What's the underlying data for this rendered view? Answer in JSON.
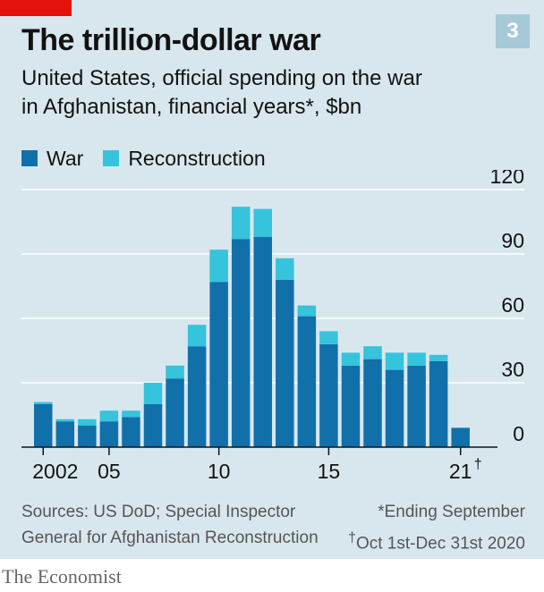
{
  "badge": "3",
  "title": "The trillion-dollar war",
  "subtitle_line1": "United States, official spending on the war",
  "subtitle_line2": "in Afghanistan, financial years*, $bn",
  "legend": {
    "war": "War",
    "reconstruction": "Reconstruction"
  },
  "colors": {
    "war": "#1170aa",
    "reconstruction": "#36c3dc",
    "background": "#d8e7ee",
    "brand_red": "#e3120b"
  },
  "chart_data": {
    "type": "bar",
    "stacked": true,
    "x": [
      2002,
      2003,
      2004,
      2005,
      2006,
      2007,
      2008,
      2009,
      2010,
      2011,
      2012,
      2013,
      2014,
      2015,
      2016,
      2017,
      2018,
      2019,
      2020,
      2021
    ],
    "x_tick_labels": [
      {
        "year": 2002,
        "label": "2002"
      },
      {
        "year": 2005,
        "label": "05"
      },
      {
        "year": 2010,
        "label": "10"
      },
      {
        "year": 2015,
        "label": "15"
      },
      {
        "year": 2021,
        "label": "21",
        "marker": "†"
      }
    ],
    "series": [
      {
        "name": "War",
        "values": [
          20,
          12,
          10,
          12,
          14,
          20,
          32,
          47,
          77,
          97,
          98,
          78,
          61,
          48,
          38,
          41,
          36,
          38,
          40,
          9
        ]
      },
      {
        "name": "Reconstruction",
        "values": [
          1,
          1,
          3,
          5,
          3,
          10,
          6,
          10,
          15,
          15,
          13,
          10,
          5,
          6,
          6,
          6,
          8,
          6,
          3,
          0
        ]
      }
    ],
    "y_ticks": [
      0,
      30,
      60,
      90,
      120
    ],
    "ylim": [
      0,
      120
    ],
    "y_axis_side": "right",
    "grid": true
  },
  "footer": {
    "source_line1": "Sources: US DoD; Special Inspector",
    "source_line2": "General for Afghanistan Reconstruction",
    "note_line1": "*Ending September",
    "note_line2": "Oct 1st-Dec 31st 2020",
    "note_dagger": "†"
  },
  "brand": "The Economist"
}
